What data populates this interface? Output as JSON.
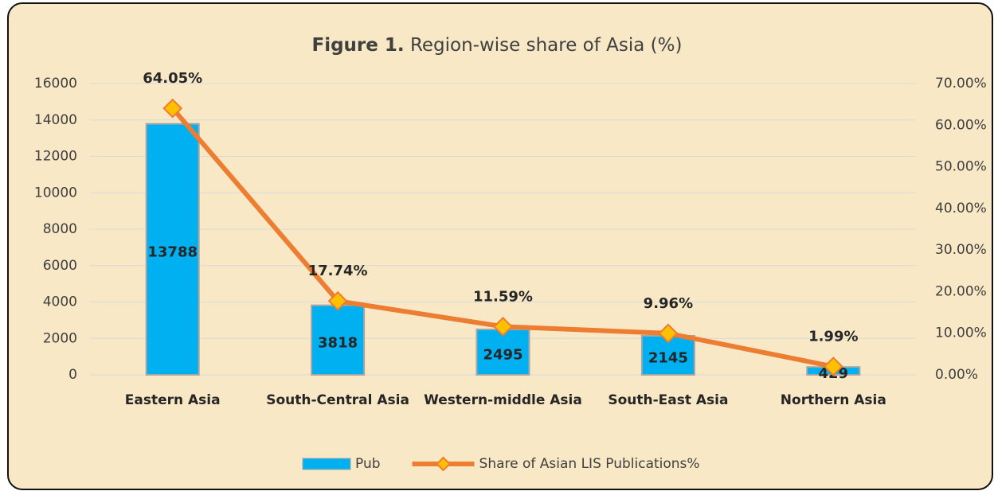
{
  "chart_data": {
    "type": "bar_line",
    "title": [
      "Figure 1.",
      "Region-wise share of Asia (%)"
    ],
    "categories": [
      "Eastern Asia",
      "South-Central Asia",
      "Western-middle Asia",
      "South-East Asia",
      "Northern Asia"
    ],
    "series": [
      {
        "name": "Pub",
        "type": "bar",
        "color": "#00b0f0",
        "values": [
          13788,
          3818,
          2495,
          2145,
          429
        ]
      },
      {
        "name": "Share of Asian LIS Publications%",
        "type": "line",
        "axis": "y2",
        "color": "#ed7d31",
        "marker_color": "#ffc000",
        "values": [
          64.05,
          17.74,
          11.59,
          9.96,
          1.99
        ],
        "value_labels": [
          "64.05%",
          "17.74%",
          "11.59%",
          "9.96%",
          "1.99%"
        ]
      }
    ],
    "ylim": [
      0,
      16000
    ],
    "yticks": [
      0,
      2000,
      4000,
      6000,
      8000,
      10000,
      12000,
      14000,
      16000
    ],
    "y2lim": [
      0,
      70
    ],
    "y2ticks": [
      {
        "value": 0,
        "label": "0.00%"
      },
      {
        "value": 10,
        "label": "10.00%"
      },
      {
        "value": 20,
        "label": "20.00%"
      },
      {
        "value": 30,
        "label": "30.00%"
      },
      {
        "value": 40,
        "label": "40.00%"
      },
      {
        "value": 50,
        "label": "50.00%"
      },
      {
        "value": 60,
        "label": "60.00%"
      },
      {
        "value": 70,
        "label": "70.00%"
      }
    ],
    "grid": true,
    "legend": "bottom"
  }
}
